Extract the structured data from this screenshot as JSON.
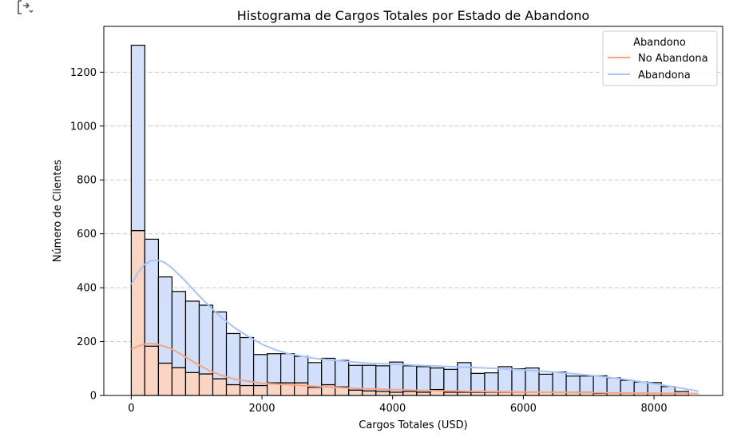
{
  "chart_data": {
    "type": "bar",
    "title": "Histograma de Cargos Totales por Estado de Abandono",
    "xlabel": "Cargos Totales (USD)",
    "ylabel": "Número de Clientes",
    "xlim": [
      -420,
      9050
    ],
    "ylim": [
      0,
      1370
    ],
    "grid": "y-dashed",
    "stacked": true,
    "bin_start": 0,
    "bin_width": 208,
    "xticks": [
      0,
      2000,
      4000,
      6000,
      8000
    ],
    "yticks": [
      0,
      200,
      400,
      600,
      800,
      1000,
      1200
    ],
    "legend": {
      "title": "Abandono",
      "placement": "top-right",
      "entries": [
        {
          "label": "No Abandona",
          "color": "#f4a582"
        },
        {
          "label": "Abandona",
          "color": "#a6c4f5"
        }
      ]
    },
    "series": [
      {
        "name": "No Abandona",
        "color": "#f4a582",
        "values": [
          612,
          183,
          120,
          103,
          85,
          80,
          62,
          40,
          37,
          37,
          47,
          47,
          47,
          30,
          40,
          32,
          20,
          17,
          15,
          12,
          15,
          12,
          22,
          12,
          12,
          12,
          12,
          12,
          12,
          12,
          12,
          12,
          12,
          12,
          8,
          10,
          8,
          8,
          8,
          8,
          8
        ]
      },
      {
        "name": "Abandona",
        "color": "#a6c4f5",
        "values": [
          688,
          397,
          320,
          283,
          265,
          255,
          248,
          190,
          178,
          115,
          108,
          108,
          98,
          92,
          98,
          98,
          92,
          95,
          95,
          112,
          95,
          95,
          80,
          85,
          110,
          70,
          72,
          95,
          87,
          90,
          67,
          75,
          60,
          60,
          65,
          55,
          48,
          42,
          40,
          25,
          7
        ]
      }
    ],
    "kde": [
      {
        "name": "No Abandona",
        "color": "#f4a582",
        "x": [
          0,
          100,
          200,
          300,
          400,
          600,
          800,
          1000,
          1200,
          1400,
          1600,
          2000,
          2400,
          2800,
          3200,
          3600,
          4000,
          4400,
          4800,
          5200,
          5600,
          6000,
          6400,
          6800,
          7200,
          7600,
          8000,
          8400,
          8680
        ],
        "y": [
          172,
          182,
          190,
          193,
          190,
          175,
          148,
          118,
          92,
          73,
          60,
          45,
          40,
          34,
          29,
          25,
          22,
          19,
          17,
          15,
          14,
          13,
          12,
          11,
          10,
          9,
          8,
          8,
          7
        ]
      },
      {
        "name": "Abandona",
        "color": "#a6c4f5",
        "x": [
          0,
          100,
          200,
          300,
          400,
          500,
          600,
          800,
          1000,
          1200,
          1400,
          1600,
          1800,
          2000,
          2200,
          2400,
          2800,
          3200,
          3600,
          4000,
          4400,
          4800,
          5200,
          5600,
          6000,
          6400,
          6800,
          7200,
          7600,
          8000,
          8400,
          8680
        ],
        "y": [
          412,
          455,
          485,
          500,
          502,
          495,
          478,
          432,
          380,
          330,
          285,
          248,
          218,
          190,
          170,
          155,
          138,
          128,
          120,
          116,
          112,
          108,
          104,
          100,
          95,
          88,
          80,
          70,
          58,
          44,
          28,
          16
        ]
      }
    ]
  },
  "icons": {
    "corner": "compare-arrows-icon"
  }
}
